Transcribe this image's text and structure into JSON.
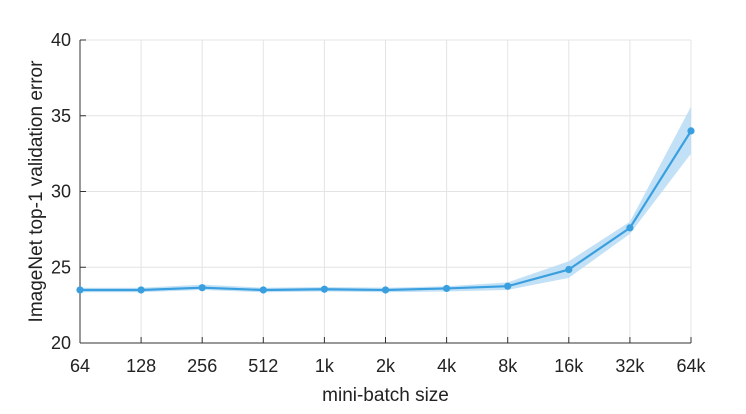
{
  "chart_data": {
    "type": "line",
    "x_label": "mini-batch size",
    "y_label": "ImageNet top-1 validation error",
    "categories": [
      "64",
      "128",
      "256",
      "512",
      "1k",
      "2k",
      "4k",
      "8k",
      "16k",
      "32k",
      "64k"
    ],
    "series": [
      {
        "values": [
          23.5,
          23.5,
          23.65,
          23.5,
          23.55,
          23.5,
          23.6,
          23.75,
          24.85,
          27.6,
          34.0
        ],
        "band_lower": [
          23.35,
          23.35,
          23.5,
          23.35,
          23.4,
          23.35,
          23.4,
          23.5,
          24.3,
          27.2,
          32.5
        ],
        "band_upper": [
          23.65,
          23.65,
          23.85,
          23.65,
          23.7,
          23.65,
          23.75,
          24.0,
          25.4,
          28.0,
          35.6
        ],
        "color": "#3a9fdf",
        "band_color": "#b9dcf4"
      }
    ],
    "y_ticks": [
      "20",
      "25",
      "30",
      "35",
      "40"
    ],
    "y_tick_values": [
      20,
      25,
      30,
      35,
      40
    ],
    "ylim": [
      20,
      40
    ],
    "grid": true,
    "grid_color": "#e4e4e4",
    "axis_color": "#333333"
  }
}
